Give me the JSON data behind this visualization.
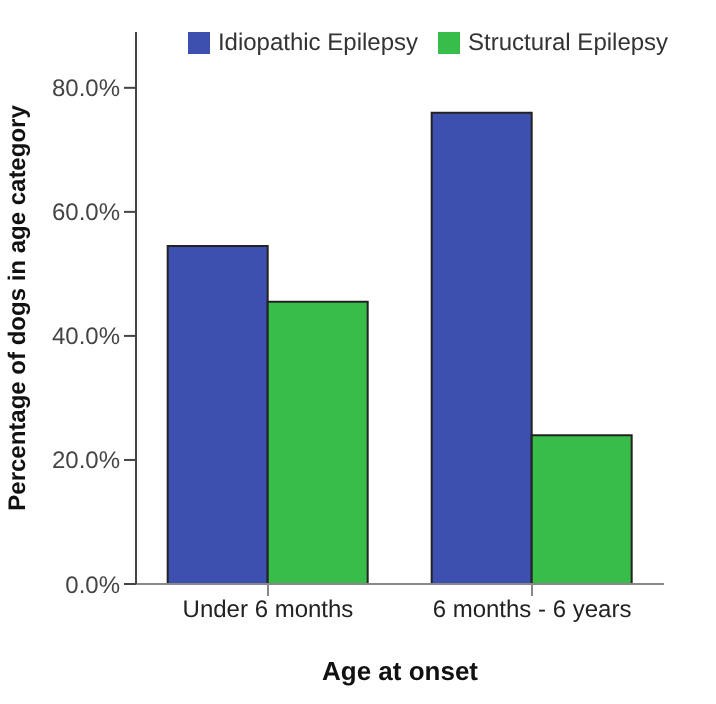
{
  "chart_data": {
    "type": "bar",
    "xlabel": "Age at onset",
    "ylabel": "Percentage of dogs in age category",
    "categories": [
      "Under 6 months",
      "6 months - 6 years"
    ],
    "series": [
      {
        "name": "Idiopathic Epilepsy",
        "color": "#3d50b0",
        "values": [
          54.5,
          76
        ]
      },
      {
        "name": "Structural Epilepsy",
        "color": "#38bd4a",
        "values": [
          45.5,
          24
        ]
      }
    ],
    "ylim": [
      0,
      89
    ],
    "yticks": [
      {
        "value": 0,
        "label": "0.0%"
      },
      {
        "value": 20,
        "label": "20.0%"
      },
      {
        "value": 40,
        "label": "40.0%"
      },
      {
        "value": 60,
        "label": "60.0%"
      },
      {
        "value": 80,
        "label": "80.0%"
      }
    ],
    "grid": false,
    "legend": "top"
  }
}
